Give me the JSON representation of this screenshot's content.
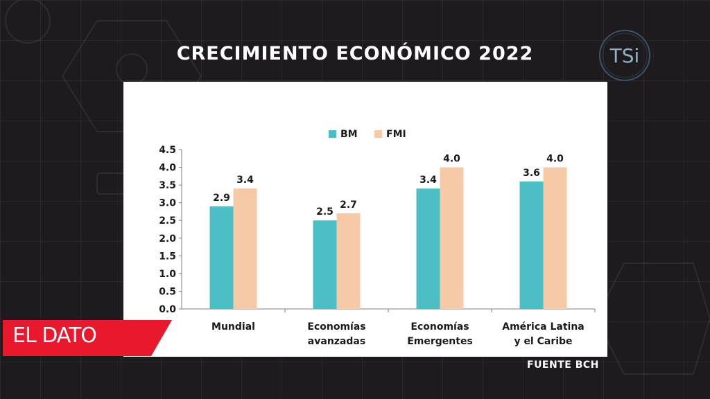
{
  "broadcast": {
    "title": "CRECIMIENTO ECONÓMICO 2022",
    "logo_text": "TSi",
    "segment_tag": "EL DATO",
    "source": "FUENTE BCH"
  },
  "colors": {
    "bm": "#4bbfc3",
    "fmi": "#f6c9a7",
    "tag_red": "#e8192c"
  },
  "chart_data": {
    "type": "bar",
    "categories": [
      "Mundial",
      "Economías avanzadas",
      "Economías Emergentes",
      "América Latina y el Caribe"
    ],
    "category_lines": [
      [
        "Mundial"
      ],
      [
        "Economías",
        "avanzadas"
      ],
      [
        "Economías",
        "Emergentes"
      ],
      [
        "América Latina",
        "y el Caribe"
      ]
    ],
    "series": [
      {
        "name": "BM",
        "values": [
          2.9,
          2.5,
          3.4,
          3.6
        ],
        "labels": [
          "2.9",
          "2.5",
          "3.4",
          "3.6"
        ]
      },
      {
        "name": "FMI",
        "values": [
          3.4,
          2.7,
          4.0,
          4.0
        ],
        "labels": [
          "3.4",
          "2.7",
          "4.0",
          "4.0"
        ]
      }
    ],
    "ylim": [
      0,
      4.5
    ],
    "yticks": [
      "0.0",
      "0.5",
      "1.0",
      "1.5",
      "2.0",
      "2.5",
      "3.0",
      "3.5",
      "4.0",
      "4.5"
    ],
    "legend_position": "top",
    "grid": false
  }
}
